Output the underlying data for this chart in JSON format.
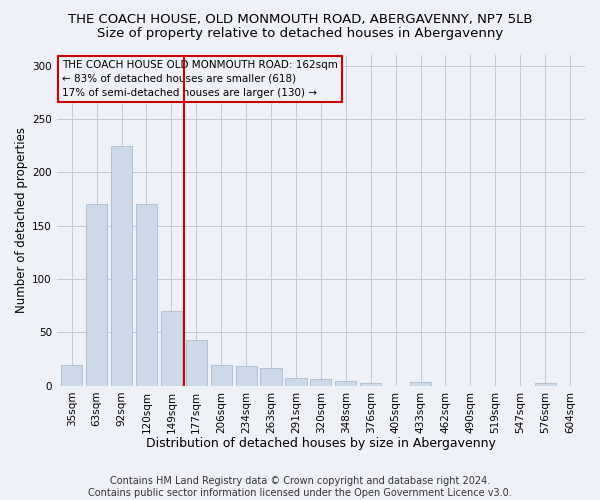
{
  "title1": "THE COACH HOUSE, OLD MONMOUTH ROAD, ABERGAVENNY, NP7 5LB",
  "title2": "Size of property relative to detached houses in Abergavenny",
  "xlabel": "Distribution of detached houses by size in Abergavenny",
  "ylabel": "Number of detached properties",
  "categories": [
    "35sqm",
    "63sqm",
    "92sqm",
    "120sqm",
    "149sqm",
    "177sqm",
    "206sqm",
    "234sqm",
    "263sqm",
    "291sqm",
    "320sqm",
    "348sqm",
    "376sqm",
    "405sqm",
    "433sqm",
    "462sqm",
    "490sqm",
    "519sqm",
    "547sqm",
    "576sqm",
    "604sqm"
  ],
  "values": [
    20,
    170,
    225,
    170,
    70,
    43,
    20,
    19,
    17,
    7,
    6,
    5,
    3,
    0,
    4,
    0,
    0,
    0,
    0,
    3,
    0
  ],
  "bar_color": "#ccd9e8",
  "bar_edgecolor": "#aabcce",
  "vline_x": 4.5,
  "vline_color": "#cc0000",
  "annotation_text": "THE COACH HOUSE OLD MONMOUTH ROAD: 162sqm\n← 83% of detached houses are smaller (618)\n17% of semi-detached houses are larger (130) →",
  "annotation_box_edgecolor": "#cc0000",
  "annotation_box_facecolor": "#eef2f8",
  "ylim": [
    0,
    310
  ],
  "yticks": [
    0,
    50,
    100,
    150,
    200,
    250,
    300
  ],
  "footer": "Contains HM Land Registry data © Crown copyright and database right 2024.\nContains public sector information licensed under the Open Government Licence v3.0.",
  "bg_color": "#eef2f8",
  "plot_bg_color": "#eef2f8",
  "grid_color": "#c0c8d8",
  "title1_fontsize": 9.5,
  "title2_fontsize": 9.5,
  "xlabel_fontsize": 9,
  "ylabel_fontsize": 8.5,
  "tick_fontsize": 7.5,
  "footer_fontsize": 7,
  "ann_fontsize": 7.5
}
